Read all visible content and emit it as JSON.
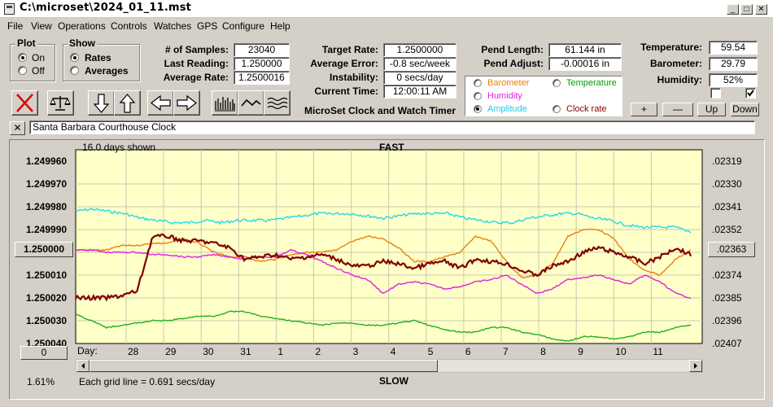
{
  "window": {
    "title": "C:\\microset\\2024_01_11.mst",
    "minimize_glyph": "_",
    "maximize_glyph": "□",
    "close_glyph": "✕"
  },
  "menu": [
    "File",
    "View",
    "Operations",
    "Controls",
    "Watches",
    "GPS",
    "Configure",
    "Help"
  ],
  "plot_group": {
    "title": "Plot",
    "options": [
      {
        "label": "On",
        "selected": true
      },
      {
        "label": "Off",
        "selected": false
      }
    ]
  },
  "show_group": {
    "title": "Show",
    "options": [
      {
        "label": "Rates",
        "selected": true
      },
      {
        "label": "Averages",
        "selected": false
      }
    ]
  },
  "stats": {
    "samples_label": "# of Samples:",
    "samples_value": "23040",
    "last_reading_label": "Last Reading:",
    "last_reading_value": "1.250000",
    "average_rate_label": "Average Rate:",
    "average_rate_value": "1.2500016",
    "target_rate_label": "Target Rate:",
    "target_rate_value": "1.2500000",
    "average_error_label": "Average Error:",
    "average_error_value": "-0.8 sec/week",
    "instability_label": "Instability:",
    "instability_value": "0 secs/day",
    "current_time_label": "Current Time:",
    "current_time_value": "12:00:11 AM",
    "pend_length_label": "Pend Length:",
    "pend_length_value": "61.144 in",
    "pend_adjust_label": "Pend Adjust:",
    "pend_adjust_value": "-0.00016 in",
    "temperature_label": "Temperature:",
    "temperature_value": "59.54",
    "barometer_label": "Barometer:",
    "barometer_value": "29.79",
    "humidity_label": "Humidity:",
    "humidity_value": "52%"
  },
  "app_subtitle": "MicroSet Clock and Watch Timer",
  "series_options": [
    {
      "label": "Barometer",
      "color": "#e8820e",
      "selected": false
    },
    {
      "label": "Temperature",
      "color": "#00a000",
      "selected": false
    },
    {
      "label": "Humidity",
      "color": "#e020e0",
      "selected": false
    },
    {
      "label": "Clock rate",
      "color": "#8b0000",
      "selected": false
    },
    {
      "label": "Amplitude",
      "color": "#20c8e8",
      "selected": true
    }
  ],
  "adjust_buttons": {
    "plus": "+",
    "minus": "—",
    "up": "Up",
    "down": "Down"
  },
  "checkboxes": [
    {
      "checked": false
    },
    {
      "checked": true
    }
  ],
  "clock_name": "Santa Barbara Courthouse Clock",
  "clear_button": "✕",
  "chart": {
    "days_shown": "16.0 days shown",
    "top_label": "FAST",
    "bottom_label": "SLOW",
    "grid_note": "Each grid line = 0.691 secs/day",
    "percent": "1.61%",
    "left_button": "0",
    "right_button": ".02363",
    "center_button": "1.250000",
    "day_axis_label": "Day:"
  },
  "chart_data": {
    "type": "line",
    "x_ticks": [
      "28",
      "29",
      "30",
      "31",
      "1",
      "2",
      "3",
      "4",
      "5",
      "6",
      "7",
      "8",
      "9",
      "10",
      "11"
    ],
    "left_axis": [
      "1.249960",
      "1.249970",
      "1.249980",
      "1.249990",
      "1.250000",
      "1.250010",
      "1.250020",
      "1.250030",
      "1.250040"
    ],
    "right_axis": [
      ".02319",
      ".02330",
      ".02341",
      ".02352",
      ".02363",
      ".02374",
      ".02385",
      ".02396",
      ".02407"
    ],
    "series": [
      {
        "name": "Amplitude",
        "color": "#20d8f0",
        "values": [
          1.249982,
          1.249981,
          1.249982,
          1.249983,
          1.249985,
          1.249986,
          1.249987,
          1.249987,
          1.249986,
          1.249987,
          1.249986,
          1.249986,
          1.249986,
          1.249985,
          1.249984,
          1.249983,
          1.249983,
          1.249983,
          1.249984,
          1.249985,
          1.249984,
          1.249983,
          1.249983,
          1.249983,
          1.249985,
          1.249986,
          1.249987,
          1.249987,
          1.249985,
          1.249984,
          1.249983,
          1.249983,
          1.249985,
          1.249986,
          1.249988,
          1.249989,
          1.249989,
          1.249989,
          1.249991
        ]
      },
      {
        "name": "Barometer",
        "color": "#e8820e",
        "values": [
          1.249999,
          1.249999,
          1.249999,
          1.249997,
          1.249997,
          1.249996,
          1.249996,
          1.249994,
          1.249996,
          1.25,
          1.250002,
          1.250002,
          1.250004,
          1.250003,
          1.250001,
          1.25,
          1.25,
          1.249999,
          1.249995,
          1.249993,
          1.249994,
          1.249998,
          1.250004,
          1.250004,
          1.250002,
          1.25,
          1.249993,
          1.249995,
          1.250004,
          1.250011,
          1.25001,
          1.250005,
          1.249993,
          1.24999,
          1.24999,
          1.249994,
          1.250003,
          1.250008,
          1.25001,
          1.250003,
          1.249999
        ]
      },
      {
        "name": "Humidity",
        "color": "#e020e0",
        "values": [
          1.249999,
          1.249999,
          1.25,
          1.25,
          1.25,
          1.250001,
          1.250001,
          1.250002,
          1.250002,
          1.250001,
          1.250002,
          1.250003,
          1.250002,
          1.250002,
          1.249999,
          1.250001,
          1.250004,
          1.250007,
          1.25001,
          1.250012,
          1.250018,
          1.250014,
          1.250013,
          1.250014,
          1.250016,
          1.250015,
          1.250013,
          1.250012,
          1.25001,
          1.250014,
          1.250018,
          1.250016,
          1.250012,
          1.250011,
          1.25001,
          1.250012,
          1.250014,
          1.25001,
          1.250013,
          1.250018,
          1.25002
        ]
      },
      {
        "name": "Clock rate",
        "color": "#800000",
        "values": [
          1.25002,
          1.25002,
          1.25002,
          1.250019,
          1.250017,
          1.249993,
          1.249993,
          1.249995,
          1.249995,
          1.249996,
          1.249998,
          1.250003,
          1.250002,
          1.250001,
          1.250003,
          1.250002,
          1.250001,
          1.250003,
          1.250006,
          1.250006,
          1.250004,
          1.250005,
          1.250007,
          1.250005,
          1.250004,
          1.250007,
          1.250003,
          1.250004,
          1.250005,
          1.250008,
          1.25001,
          1.250006,
          1.250004,
          1.25,
          1.249998,
          1.25,
          1.250002,
          1.250005,
          1.250002,
          1.249998,
          1.250001
        ]
      },
      {
        "name": "Temperature",
        "color": "#20b020",
        "values": [
          1.250027,
          1.25003,
          1.250033,
          1.250032,
          1.250031,
          1.25003,
          1.25003,
          1.250029,
          1.250028,
          1.250028,
          1.250026,
          1.250026,
          1.250028,
          1.250029,
          1.25003,
          1.250031,
          1.250032,
          1.250031,
          1.250031,
          1.250032,
          1.250032,
          1.250031,
          1.25003,
          1.250032,
          1.250034,
          1.250035,
          1.250035,
          1.250033,
          1.250033,
          1.250035,
          1.250036,
          1.250038,
          1.250039,
          1.250037,
          1.250037,
          1.250038,
          1.250037,
          1.250035,
          1.250035,
          1.250033,
          1.250032
        ]
      }
    ],
    "ylim": [
      1.249955,
      1.25004
    ]
  }
}
